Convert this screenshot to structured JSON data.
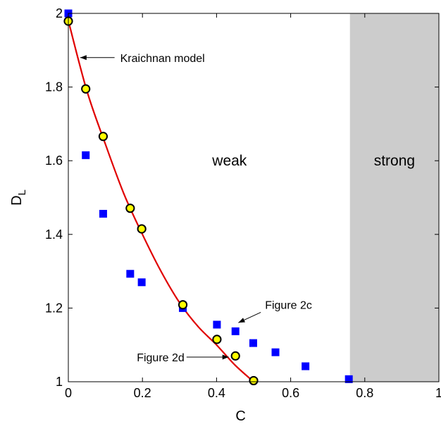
{
  "chart_data": {
    "type": "scatter",
    "title": "",
    "xlabel": "C",
    "ylabel": "D",
    "ylabel_subscript": "L",
    "xlim": [
      0,
      1
    ],
    "ylim": [
      1,
      2
    ],
    "xticks": [
      0,
      0.2,
      0.4,
      0.6,
      0.8,
      1
    ],
    "xtick_labels": [
      "0",
      "0.2",
      "0.4",
      "0.6",
      "0.8",
      "1"
    ],
    "yticks": [
      1,
      1.2,
      1.4,
      1.6,
      1.8,
      2
    ],
    "ytick_labels": [
      "1",
      "1.2",
      "1.4",
      "1.6",
      "1.8",
      "2"
    ],
    "grid": false,
    "regions": [
      {
        "label": "weak",
        "x_range": [
          0,
          0.76
        ],
        "color": "#ffffff"
      },
      {
        "label": "strong",
        "x_range": [
          0.76,
          1
        ],
        "color": "#cccccc"
      }
    ],
    "series": [
      {
        "kind": "line",
        "color": "#e00000",
        "x": [
          0,
          0.05,
          0.1,
          0.15,
          0.2,
          0.25,
          0.3,
          0.35,
          0.4,
          0.45,
          0.5
        ],
        "y": [
          1.98,
          1.79,
          1.645,
          1.51,
          1.4,
          1.3,
          1.215,
          1.15,
          1.1,
          1.045,
          1.0
        ]
      },
      {
        "kind": "circle",
        "color": "#ffff00",
        "edge": "#000000",
        "x": [
          0.0,
          0.047,
          0.094,
          0.167,
          0.198,
          0.309,
          0.401,
          0.451,
          0.5
        ],
        "y": [
          1.979,
          1.795,
          1.666,
          1.471,
          1.415,
          1.209,
          1.115,
          1.07,
          1.003
        ]
      },
      {
        "kind": "square",
        "color": "#0000ff",
        "x": [
          0.0,
          0.047,
          0.094,
          0.167,
          0.198,
          0.309,
          0.401,
          0.451,
          0.499,
          0.559,
          0.64,
          0.757
        ],
        "y": [
          2.0,
          1.615,
          1.456,
          1.293,
          1.27,
          1.2,
          1.155,
          1.137,
          1.105,
          1.08,
          1.042,
          1.007
        ]
      }
    ],
    "annotations": [
      {
        "text": "Kraichnan model",
        "point": [
          0.032,
          1.88
        ],
        "text_anchor_point": [
          0.14,
          1.88
        ]
      },
      {
        "text": "Figure 2c",
        "point": [
          0.455,
          1.145
        ],
        "text_anchor_point": [
          0.527,
          1.2
        ]
      },
      {
        "text": "Figure 2d",
        "point": [
          0.45,
          1.067
        ],
        "text_anchor_point": [
          0.3,
          1.067
        ]
      }
    ]
  }
}
